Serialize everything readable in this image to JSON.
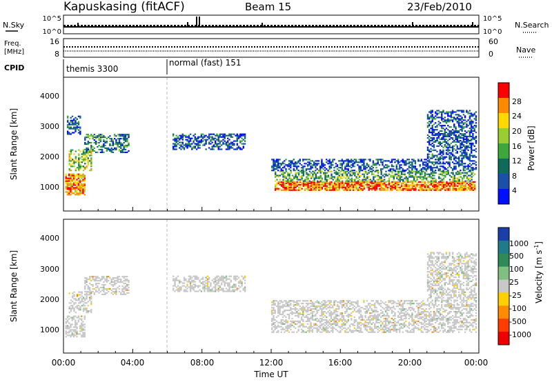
{
  "header": {
    "station": "Kapuskasing (fitACF)",
    "beam": "Beam 15",
    "date": "23/Feb/2010"
  },
  "panels": {
    "nsky_label": "N.Sky",
    "nsearch_label": "N.Search",
    "freq_label_1": "Freq.",
    "freq_label_2": "[MHz]",
    "nave_label": "Nave",
    "cpid_label": "CPID",
    "nsky_ticks": [
      "10^5",
      "10^0"
    ],
    "nsearch_ticks": [
      "10^5",
      "10^0"
    ],
    "freq_ticks": [
      "16",
      "8"
    ],
    "nave_ticks": [
      "60",
      "0"
    ],
    "cpid_segments": [
      {
        "label": "themis 3300",
        "start_hour": 0,
        "end_hour": 6.05
      },
      {
        "label": "normal (fast) 151",
        "start_hour": 6.05,
        "end_hour": 24
      }
    ]
  },
  "axes": {
    "y_label": "Slant Range [km]",
    "x_label": "Time UT",
    "x_ticks": [
      "00:00",
      "04:00",
      "08:00",
      "12:00",
      "16:00",
      "20:00",
      "00:00"
    ],
    "y_ticks": [
      "1000",
      "2000",
      "3000",
      "4000"
    ]
  },
  "power_scale": {
    "label": "Power [dB]",
    "ticks": [
      "4",
      "8",
      "12",
      "16",
      "20",
      "24",
      "28"
    ],
    "colors": [
      "#0010ff",
      "#1c4fa8",
      "#0e6b5a",
      "#3da63c",
      "#9acd32",
      "#ffd800",
      "#ff8a00",
      "#ff0000"
    ]
  },
  "velocity_scale": {
    "label": "Velocity [m s",
    "label_sup": "-1",
    "label_end": "]",
    "ticks": [
      "1000",
      "500",
      "100",
      "25",
      "-25",
      "-100",
      "-500",
      "-1000"
    ],
    "colors": [
      "#1a3fa8",
      "#1f7a8c",
      "#2e8b57",
      "#7fbf7f",
      "#c8c8c8",
      "#ffd000",
      "#ff8c00",
      "#ff3b00",
      "#ee0000"
    ]
  },
  "chart_data": [
    {
      "type": "heatmap",
      "title": "Power [dB]",
      "xlabel": "Time UT",
      "ylabel": "Slant Range [km]",
      "xlim": [
        0,
        24
      ],
      "ylim": [
        180,
        4600
      ],
      "regions": [
        {
          "t0": 0.1,
          "t1": 1.2,
          "r0": 700,
          "r1": 1400,
          "level": 6
        },
        {
          "t0": 0.3,
          "t1": 1.6,
          "r0": 1500,
          "r1": 2200,
          "level": 4
        },
        {
          "t0": 1.2,
          "t1": 3.8,
          "r0": 2100,
          "r1": 2700,
          "level": 2
        },
        {
          "t0": 0.2,
          "t1": 1.0,
          "r0": 2700,
          "r1": 3300,
          "level": 1
        },
        {
          "t0": 6.3,
          "t1": 10.5,
          "r0": 2200,
          "r1": 2700,
          "level": 1
        },
        {
          "t0": 12.2,
          "t1": 23.8,
          "r0": 850,
          "r1": 1150,
          "level": 6
        },
        {
          "t0": 12.2,
          "t1": 23.8,
          "r0": 1150,
          "r1": 1500,
          "level": 3
        },
        {
          "t0": 12.0,
          "t1": 23.8,
          "r0": 1500,
          "r1": 1900,
          "level": 1
        },
        {
          "t0": 21.0,
          "t1": 23.8,
          "r0": 1900,
          "r1": 3500,
          "level": 1
        }
      ]
    },
    {
      "type": "heatmap",
      "title": "Velocity [m s-1]",
      "xlabel": "Time UT",
      "ylabel": "Slant Range [km]",
      "xlim": [
        0,
        24
      ],
      "ylim": [
        180,
        4600
      ],
      "regions": [
        {
          "t0": 0.1,
          "t1": 1.2,
          "r0": 700,
          "r1": 1400,
          "level": 4
        },
        {
          "t0": 0.3,
          "t1": 1.6,
          "r0": 1500,
          "r1": 2200,
          "level": 4
        },
        {
          "t0": 1.2,
          "t1": 3.8,
          "r0": 2100,
          "r1": 2700,
          "level": 4
        },
        {
          "t0": 6.3,
          "t1": 10.5,
          "r0": 2200,
          "r1": 2700,
          "level": 4
        },
        {
          "t0": 12.0,
          "t1": 23.8,
          "r0": 850,
          "r1": 1900,
          "level": 4
        },
        {
          "t0": 21.0,
          "t1": 23.8,
          "r0": 1900,
          "r1": 3500,
          "level": 4
        }
      ]
    }
  ]
}
